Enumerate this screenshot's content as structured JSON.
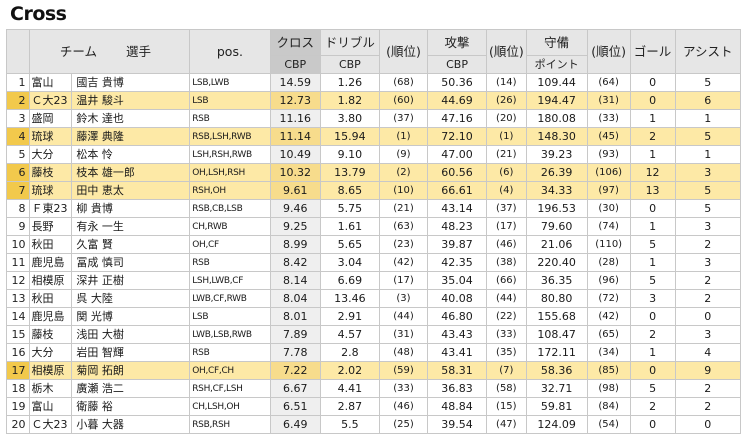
{
  "title": "Cross",
  "headers": {
    "team": "チーム",
    "player": "選手",
    "pos": "pos.",
    "cross": "クロス",
    "dribble": "ドリブル",
    "rank": "(順位)",
    "attack": "攻撃",
    "defense": "守備",
    "goal": "ゴール",
    "assist": "アシスト",
    "cbp": "CBP",
    "point": "ポイント"
  },
  "rows": [
    {
      "rank": "1",
      "team": "富山",
      "player": "國吉 貴博",
      "pos": "LSB,LWB",
      "cross": "14.59",
      "dribble": "1.26",
      "dribble_rank": "(68)",
      "attack": "50.36",
      "attack_rank": "(14)",
      "defense": "109.44",
      "defense_rank": "(64)",
      "goal": "0",
      "assist": "5",
      "highlight": false
    },
    {
      "rank": "2",
      "team": "Ｃ大23",
      "player": "温井 駿斗",
      "pos": "LSB",
      "cross": "12.73",
      "dribble": "1.82",
      "dribble_rank": "(60)",
      "attack": "44.69",
      "attack_rank": "(26)",
      "defense": "194.47",
      "defense_rank": "(31)",
      "goal": "0",
      "assist": "6",
      "highlight": true
    },
    {
      "rank": "3",
      "team": "盛岡",
      "player": "鈴木 達也",
      "pos": "RSB",
      "cross": "11.16",
      "dribble": "3.80",
      "dribble_rank": "(37)",
      "attack": "47.16",
      "attack_rank": "(20)",
      "defense": "180.08",
      "defense_rank": "(33)",
      "goal": "1",
      "assist": "1",
      "highlight": false
    },
    {
      "rank": "4",
      "team": "琉球",
      "player": "藤澤 典隆",
      "pos": "RSB,LSH,RWB",
      "cross": "11.14",
      "dribble": "15.94",
      "dribble_rank": "(1)",
      "attack": "72.10",
      "attack_rank": "(1)",
      "defense": "148.30",
      "defense_rank": "(45)",
      "goal": "2",
      "assist": "5",
      "highlight": true
    },
    {
      "rank": "5",
      "team": "大分",
      "player": "松本 怜",
      "pos": "LSH,RSH,RWB",
      "cross": "10.49",
      "dribble": "9.10",
      "dribble_rank": "(9)",
      "attack": "47.00",
      "attack_rank": "(21)",
      "defense": "39.23",
      "defense_rank": "(93)",
      "goal": "1",
      "assist": "1",
      "highlight": false
    },
    {
      "rank": "6",
      "team": "藤枝",
      "player": "枝本 雄一郎",
      "pos": "OH,LSH,RSH",
      "cross": "10.32",
      "dribble": "13.79",
      "dribble_rank": "(2)",
      "attack": "60.56",
      "attack_rank": "(6)",
      "defense": "26.39",
      "defense_rank": "(106)",
      "goal": "12",
      "assist": "3",
      "highlight": true
    },
    {
      "rank": "7",
      "team": "琉球",
      "player": "田中 恵太",
      "pos": "RSH,OH",
      "cross": "9.61",
      "dribble": "8.65",
      "dribble_rank": "(10)",
      "attack": "66.61",
      "attack_rank": "(4)",
      "defense": "34.33",
      "defense_rank": "(97)",
      "goal": "13",
      "assist": "5",
      "highlight": true
    },
    {
      "rank": "8",
      "team": "Ｆ東23",
      "player": "柳 貴博",
      "pos": "RSB,CB,LSB",
      "cross": "9.46",
      "dribble": "5.75",
      "dribble_rank": "(21)",
      "attack": "43.14",
      "attack_rank": "(37)",
      "defense": "196.53",
      "defense_rank": "(30)",
      "goal": "0",
      "assist": "5",
      "highlight": false
    },
    {
      "rank": "9",
      "team": "長野",
      "player": "有永 一生",
      "pos": "CH,RWB",
      "cross": "9.25",
      "dribble": "1.61",
      "dribble_rank": "(63)",
      "attack": "48.23",
      "attack_rank": "(17)",
      "defense": "79.60",
      "defense_rank": "(74)",
      "goal": "1",
      "assist": "3",
      "highlight": false
    },
    {
      "rank": "10",
      "team": "秋田",
      "player": "久富 賢",
      "pos": "OH,CF",
      "cross": "8.99",
      "dribble": "5.65",
      "dribble_rank": "(23)",
      "attack": "39.87",
      "attack_rank": "(46)",
      "defense": "21.06",
      "defense_rank": "(110)",
      "goal": "5",
      "assist": "2",
      "highlight": false
    },
    {
      "rank": "11",
      "team": "鹿児島",
      "player": "冨成 慎司",
      "pos": "RSB",
      "cross": "8.42",
      "dribble": "3.04",
      "dribble_rank": "(42)",
      "attack": "42.35",
      "attack_rank": "(38)",
      "defense": "220.40",
      "defense_rank": "(28)",
      "goal": "1",
      "assist": "3",
      "highlight": false
    },
    {
      "rank": "12",
      "team": "相模原",
      "player": "深井 正樹",
      "pos": "LSH,LWB,CF",
      "cross": "8.14",
      "dribble": "6.69",
      "dribble_rank": "(17)",
      "attack": "35.04",
      "attack_rank": "(66)",
      "defense": "36.35",
      "defense_rank": "(96)",
      "goal": "5",
      "assist": "2",
      "highlight": false
    },
    {
      "rank": "13",
      "team": "秋田",
      "player": "呉 大陸",
      "pos": "LWB,CF,RWB",
      "cross": "8.04",
      "dribble": "13.46",
      "dribble_rank": "(3)",
      "attack": "40.08",
      "attack_rank": "(44)",
      "defense": "80.80",
      "defense_rank": "(72)",
      "goal": "3",
      "assist": "2",
      "highlight": false
    },
    {
      "rank": "14",
      "team": "鹿児島",
      "player": "関 光博",
      "pos": "LSB",
      "cross": "8.01",
      "dribble": "2.91",
      "dribble_rank": "(44)",
      "attack": "46.80",
      "attack_rank": "(22)",
      "defense": "155.68",
      "defense_rank": "(42)",
      "goal": "0",
      "assist": "0",
      "highlight": false
    },
    {
      "rank": "15",
      "team": "藤枝",
      "player": "浅田 大樹",
      "pos": "LWB,LSB,RWB",
      "cross": "7.89",
      "dribble": "4.57",
      "dribble_rank": "(31)",
      "attack": "43.43",
      "attack_rank": "(33)",
      "defense": "108.47",
      "defense_rank": "(65)",
      "goal": "2",
      "assist": "3",
      "highlight": false
    },
    {
      "rank": "16",
      "team": "大分",
      "player": "岩田 智輝",
      "pos": "RSB",
      "cross": "7.78",
      "dribble": "2.8",
      "dribble_rank": "(48)",
      "attack": "43.41",
      "attack_rank": "(35)",
      "defense": "172.11",
      "defense_rank": "(34)",
      "goal": "1",
      "assist": "4",
      "highlight": false
    },
    {
      "rank": "17",
      "team": "相模原",
      "player": "菊岡 拓朗",
      "pos": "OH,CF,CH",
      "cross": "7.22",
      "dribble": "2.02",
      "dribble_rank": "(59)",
      "attack": "58.31",
      "attack_rank": "(7)",
      "defense": "58.36",
      "defense_rank": "(85)",
      "goal": "0",
      "assist": "9",
      "highlight": true
    },
    {
      "rank": "18",
      "team": "栃木",
      "player": "廣瀬 浩二",
      "pos": "RSH,CF,LSH",
      "cross": "6.67",
      "dribble": "4.41",
      "dribble_rank": "(33)",
      "attack": "36.83",
      "attack_rank": "(58)",
      "defense": "32.71",
      "defense_rank": "(98)",
      "goal": "5",
      "assist": "2",
      "highlight": false
    },
    {
      "rank": "19",
      "team": "富山",
      "player": "衛藤 裕",
      "pos": "CH,LSH,OH",
      "cross": "6.51",
      "dribble": "2.87",
      "dribble_rank": "(46)",
      "attack": "48.84",
      "attack_rank": "(15)",
      "defense": "59.81",
      "defense_rank": "(84)",
      "goal": "2",
      "assist": "2",
      "highlight": false
    },
    {
      "rank": "20",
      "team": "Ｃ大23",
      "player": "小暮 大器",
      "pos": "RSB,RSH",
      "cross": "6.49",
      "dribble": "5.5",
      "dribble_rank": "(25)",
      "attack": "39.54",
      "attack_rank": "(47)",
      "defense": "124.09",
      "defense_rank": "(54)",
      "goal": "0",
      "assist": "0",
      "highlight": false
    }
  ]
}
